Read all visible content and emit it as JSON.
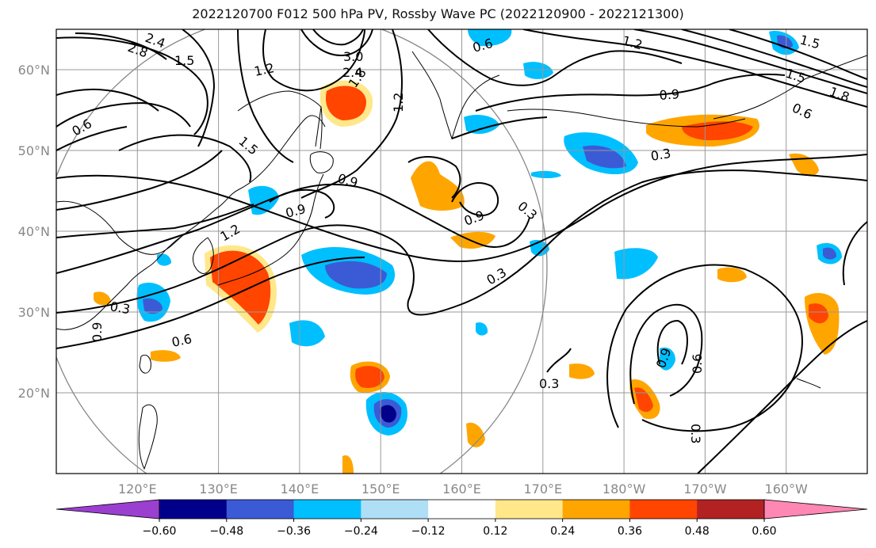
{
  "title": "2022120700 F012 500 hPa PV, Rossby Wave PC (2022120900 - 2022121300)",
  "map": {
    "lat_labels": [
      "60°N",
      "50°N",
      "40°N",
      "30°N",
      "20°N"
    ],
    "lon_labels": [
      "120°E",
      "130°E",
      "140°E",
      "150°E",
      "160°E",
      "170°E",
      "180°W",
      "170°W",
      "160°W"
    ],
    "lat_range": [
      10,
      65
    ],
    "lon_range": [
      110,
      210
    ],
    "gridlines": true,
    "coastlines": true,
    "outline_circle": true
  },
  "contour_labels": [
    {
      "text": "2.4"
    },
    {
      "text": "2.8"
    },
    {
      "text": "1.5"
    },
    {
      "text": "1.2"
    },
    {
      "text": "3.0"
    },
    {
      "text": "2.4"
    },
    {
      "text": "1.8"
    },
    {
      "text": "1.2"
    },
    {
      "text": "0.6"
    },
    {
      "text": "1.2"
    },
    {
      "text": "1.5"
    },
    {
      "text": "1.5"
    },
    {
      "text": "1.8"
    },
    {
      "text": "0.6"
    },
    {
      "text": "0.9"
    },
    {
      "text": "0.6"
    },
    {
      "text": "1.5"
    },
    {
      "text": "0.9"
    },
    {
      "text": "0.3"
    },
    {
      "text": "0.9"
    },
    {
      "text": "0.9"
    },
    {
      "text": "0.3"
    },
    {
      "text": "0.9"
    },
    {
      "text": "1.2"
    },
    {
      "text": "0.3"
    },
    {
      "text": "0.3"
    },
    {
      "text": "0.9"
    },
    {
      "text": "0.6"
    },
    {
      "text": "0.3"
    },
    {
      "text": "0.6"
    },
    {
      "text": "0.9"
    },
    {
      "text": "0.3"
    }
  ],
  "colorbar": {
    "levels": [
      "−0.60",
      "−0.48",
      "−0.36",
      "−0.24",
      "−0.12",
      "0.12",
      "0.24",
      "0.36",
      "0.48",
      "0.60"
    ],
    "colors": [
      "#9b3fd1",
      "#00008b",
      "#3b5bd6",
      "#00bfff",
      "#aedff7",
      "#ffffff",
      "#ffe78a",
      "#ffa500",
      "#ff4500",
      "#b22222",
      "#ff87b4"
    ],
    "extend": "both"
  }
}
